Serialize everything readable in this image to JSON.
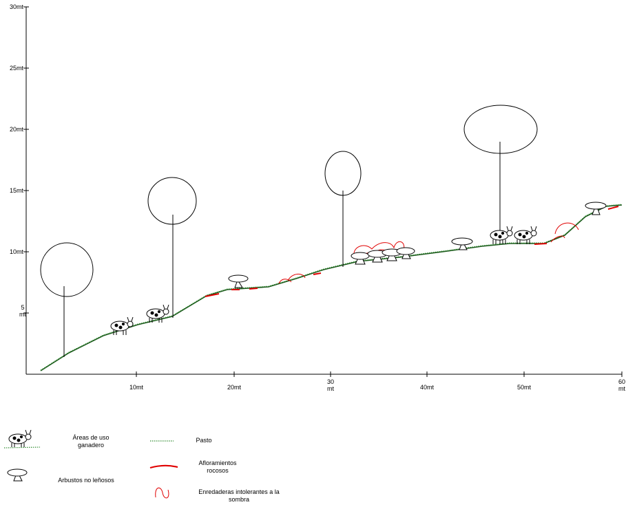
{
  "diagram": {
    "y_axis_labels": [
      "30mt",
      "25mt",
      "20mt",
      "15mt",
      "10mt",
      "5\nmt"
    ],
    "x_axis_labels": [
      "10mt",
      "20mt",
      "30\nmt",
      "40mt",
      "50mt",
      "60\nmt"
    ]
  },
  "legend": {
    "ganadero": "Áreas de uso ganadero",
    "arbustos": "Arbustos no leñosos",
    "pasto": "Pasto",
    "afloramientos": "Afloramientos rocosos",
    "enredaderas": "Enredaderas intolerantes a la sombra"
  },
  "colors": {
    "ground": "#1e5a1e",
    "grass": "#2e8b2e",
    "rock": "#e00000",
    "vine": "#e00000",
    "ink": "#000000"
  }
}
